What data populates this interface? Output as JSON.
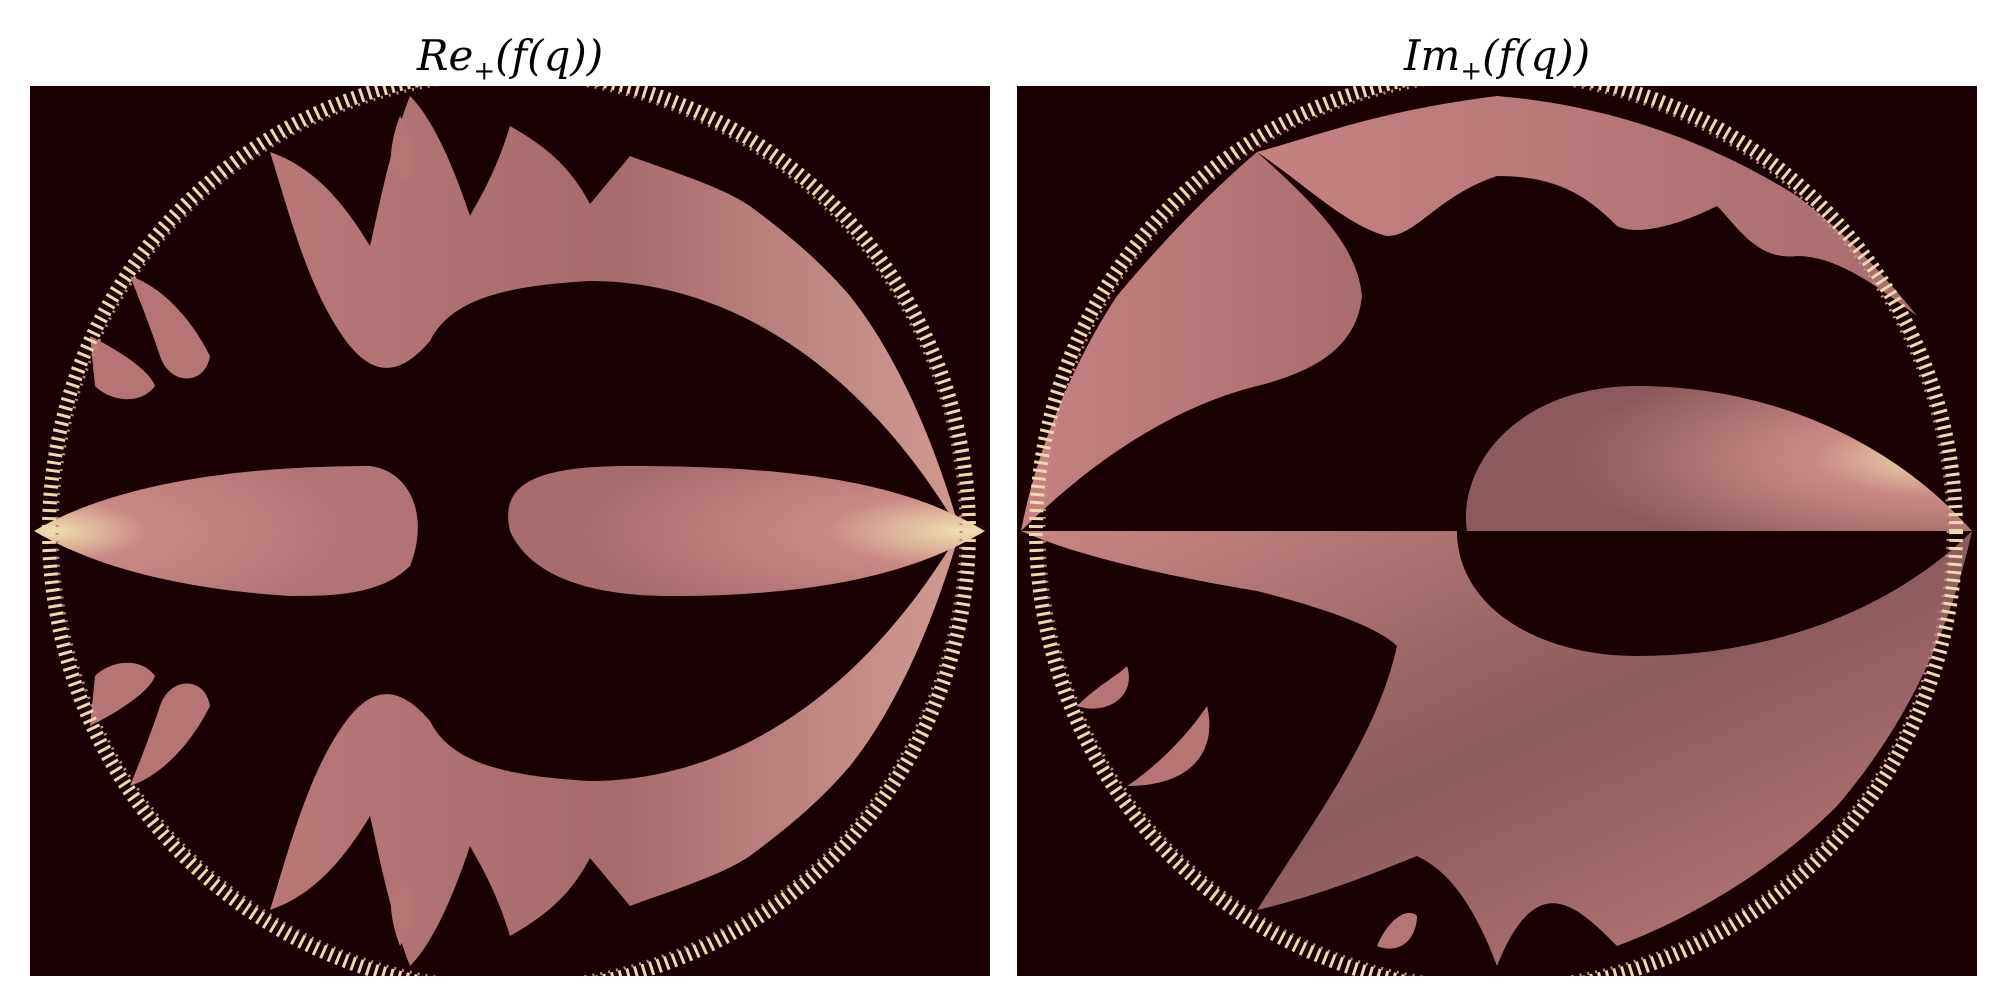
{
  "figure": {
    "panels": [
      {
        "id": "real-part",
        "title_main": "Re",
        "title_sub": "+",
        "title_rest": "(f(q))",
        "title_text": "Re+(f(q))"
      },
      {
        "id": "imag-part",
        "title_main": "Im",
        "title_sub": "+",
        "title_rest": "(f(q))",
        "title_text": "Im+(f(q))"
      }
    ]
  },
  "colors": {
    "background": "#1b0003",
    "fill_dark": "#8a5558",
    "fill_mid": "#b87677",
    "fill_light": "#e8b6a4",
    "rim": "#f1e1b4"
  }
}
